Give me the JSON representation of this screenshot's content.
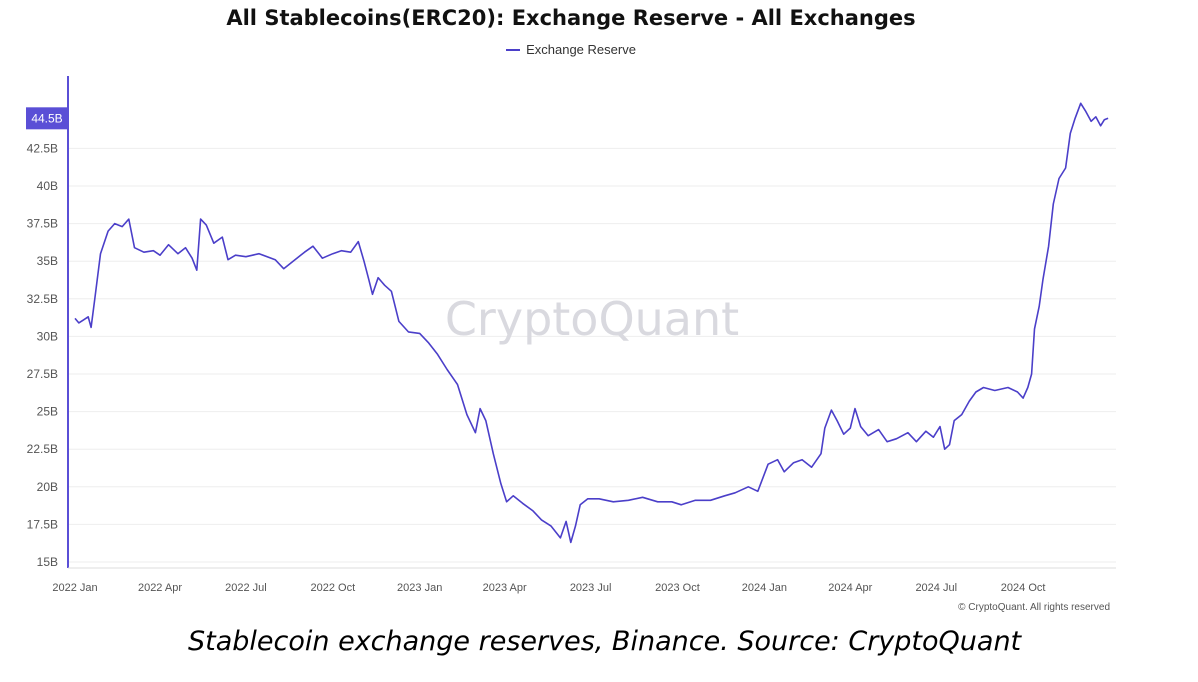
{
  "colors": {
    "series": "#4b3fc9",
    "grid": "#eeeeee",
    "axis": "#5a4fd6",
    "watermark": "#d9d9df",
    "tick": "#555555"
  },
  "watermark": "CryptoQuant",
  "copyright": "© CryptoQuant. All rights reserved",
  "caption": "Stablecoin exchange reserves, Binance. Source: CryptoQuant",
  "chart_data": {
    "type": "line",
    "title": "All Stablecoins(ERC20): Exchange Reserve - All Exchanges",
    "legend": [
      "Exchange Reserve"
    ],
    "xlabel": "",
    "ylabel": "",
    "ylim": [
      15,
      46
    ],
    "grid": true,
    "yticks": [
      {
        "v": 15,
        "label": "15B"
      },
      {
        "v": 17.5,
        "label": "17.5B"
      },
      {
        "v": 20,
        "label": "20B"
      },
      {
        "v": 22.5,
        "label": "22.5B"
      },
      {
        "v": 25,
        "label": "25B"
      },
      {
        "v": 27.5,
        "label": "27.5B"
      },
      {
        "v": 30,
        "label": "30B"
      },
      {
        "v": 32.5,
        "label": "32.5B"
      },
      {
        "v": 35,
        "label": "35B"
      },
      {
        "v": 37.5,
        "label": "37.5B"
      },
      {
        "v": 40,
        "label": "40B"
      },
      {
        "v": 42.5,
        "label": "42.5B"
      }
    ],
    "xticks": [
      {
        "date": "2022-01-01",
        "label": "2022 Jan"
      },
      {
        "date": "2022-04-01",
        "label": "2022 Apr"
      },
      {
        "date": "2022-07-01",
        "label": "2022 Jul"
      },
      {
        "date": "2022-10-01",
        "label": "2022 Oct"
      },
      {
        "date": "2023-01-01",
        "label": "2023 Jan"
      },
      {
        "date": "2023-04-01",
        "label": "2023 Apr"
      },
      {
        "date": "2023-07-01",
        "label": "2023 Jul"
      },
      {
        "date": "2023-10-01",
        "label": "2023 Oct"
      },
      {
        "date": "2024-01-01",
        "label": "2024 Jan"
      },
      {
        "date": "2024-04-01",
        "label": "2024 Apr"
      },
      {
        "date": "2024-07-01",
        "label": "2024 Jul"
      },
      {
        "date": "2024-10-01",
        "label": "2024 Oct"
      }
    ],
    "current_value": {
      "v": 44.5,
      "label": "44.5B"
    },
    "series": [
      {
        "name": "Exchange Reserve",
        "points": [
          [
            "2022-01-01",
            31.2
          ],
          [
            "2022-01-05",
            30.9
          ],
          [
            "2022-01-10",
            31.1
          ],
          [
            "2022-01-15",
            31.3
          ],
          [
            "2022-01-18",
            30.6
          ],
          [
            "2022-01-22",
            32.5
          ],
          [
            "2022-01-28",
            35.5
          ],
          [
            "2022-02-05",
            37.0
          ],
          [
            "2022-02-12",
            37.5
          ],
          [
            "2022-02-20",
            37.3
          ],
          [
            "2022-02-27",
            37.8
          ],
          [
            "2022-03-05",
            35.9
          ],
          [
            "2022-03-15",
            35.6
          ],
          [
            "2022-03-25",
            35.7
          ],
          [
            "2022-04-01",
            35.4
          ],
          [
            "2022-04-10",
            36.1
          ],
          [
            "2022-04-20",
            35.5
          ],
          [
            "2022-04-28",
            35.9
          ],
          [
            "2022-05-05",
            35.2
          ],
          [
            "2022-05-10",
            34.4
          ],
          [
            "2022-05-14",
            37.8
          ],
          [
            "2022-05-20",
            37.4
          ],
          [
            "2022-05-28",
            36.2
          ],
          [
            "2022-06-06",
            36.6
          ],
          [
            "2022-06-12",
            35.1
          ],
          [
            "2022-06-20",
            35.4
          ],
          [
            "2022-07-01",
            35.3
          ],
          [
            "2022-07-15",
            35.5
          ],
          [
            "2022-08-01",
            35.1
          ],
          [
            "2022-08-10",
            34.5
          ],
          [
            "2022-08-20",
            35.0
          ],
          [
            "2022-09-01",
            35.6
          ],
          [
            "2022-09-10",
            36.0
          ],
          [
            "2022-09-20",
            35.2
          ],
          [
            "2022-10-01",
            35.5
          ],
          [
            "2022-10-10",
            35.7
          ],
          [
            "2022-10-20",
            35.6
          ],
          [
            "2022-10-28",
            36.3
          ],
          [
            "2022-11-03",
            35.0
          ],
          [
            "2022-11-08",
            33.8
          ],
          [
            "2022-11-12",
            32.8
          ],
          [
            "2022-11-18",
            33.9
          ],
          [
            "2022-11-25",
            33.4
          ],
          [
            "2022-12-02",
            33.0
          ],
          [
            "2022-12-10",
            31.0
          ],
          [
            "2022-12-20",
            30.3
          ],
          [
            "2023-01-01",
            30.2
          ],
          [
            "2023-01-10",
            29.6
          ],
          [
            "2023-01-20",
            28.8
          ],
          [
            "2023-01-30",
            27.8
          ],
          [
            "2023-02-10",
            26.8
          ],
          [
            "2023-02-20",
            24.8
          ],
          [
            "2023-03-01",
            23.6
          ],
          [
            "2023-03-06",
            25.2
          ],
          [
            "2023-03-12",
            24.4
          ],
          [
            "2023-03-20",
            22.2
          ],
          [
            "2023-03-28",
            20.2
          ],
          [
            "2023-04-03",
            19.0
          ],
          [
            "2023-04-10",
            19.4
          ],
          [
            "2023-04-20",
            18.9
          ],
          [
            "2023-05-01",
            18.4
          ],
          [
            "2023-05-10",
            17.8
          ],
          [
            "2023-05-20",
            17.4
          ],
          [
            "2023-05-30",
            16.6
          ],
          [
            "2023-06-05",
            17.7
          ],
          [
            "2023-06-10",
            16.3
          ],
          [
            "2023-06-15",
            17.4
          ],
          [
            "2023-06-20",
            18.8
          ],
          [
            "2023-06-28",
            19.2
          ],
          [
            "2023-07-10",
            19.2
          ],
          [
            "2023-07-25",
            19.0
          ],
          [
            "2023-08-10",
            19.1
          ],
          [
            "2023-08-25",
            19.3
          ],
          [
            "2023-09-10",
            19.0
          ],
          [
            "2023-09-25",
            19.0
          ],
          [
            "2023-10-05",
            18.8
          ],
          [
            "2023-10-20",
            19.1
          ],
          [
            "2023-11-05",
            19.1
          ],
          [
            "2023-11-20",
            19.4
          ],
          [
            "2023-12-01",
            19.6
          ],
          [
            "2023-12-15",
            20.0
          ],
          [
            "2023-12-25",
            19.7
          ],
          [
            "2024-01-05",
            21.5
          ],
          [
            "2024-01-15",
            21.8
          ],
          [
            "2024-01-22",
            21.0
          ],
          [
            "2024-02-01",
            21.6
          ],
          [
            "2024-02-10",
            21.8
          ],
          [
            "2024-02-20",
            21.3
          ],
          [
            "2024-03-01",
            22.2
          ],
          [
            "2024-03-05",
            23.9
          ],
          [
            "2024-03-12",
            25.1
          ],
          [
            "2024-03-18",
            24.4
          ],
          [
            "2024-03-25",
            23.5
          ],
          [
            "2024-04-01",
            23.9
          ],
          [
            "2024-04-06",
            25.2
          ],
          [
            "2024-04-12",
            24.0
          ],
          [
            "2024-04-20",
            23.4
          ],
          [
            "2024-05-01",
            23.8
          ],
          [
            "2024-05-10",
            23.0
          ],
          [
            "2024-05-20",
            23.2
          ],
          [
            "2024-06-01",
            23.6
          ],
          [
            "2024-06-10",
            23.0
          ],
          [
            "2024-06-20",
            23.7
          ],
          [
            "2024-06-28",
            23.3
          ],
          [
            "2024-07-05",
            24.0
          ],
          [
            "2024-07-10",
            22.5
          ],
          [
            "2024-07-15",
            22.8
          ],
          [
            "2024-07-20",
            24.4
          ],
          [
            "2024-07-28",
            24.8
          ],
          [
            "2024-08-05",
            25.7
          ],
          [
            "2024-08-12",
            26.3
          ],
          [
            "2024-08-20",
            26.6
          ],
          [
            "2024-09-01",
            26.4
          ],
          [
            "2024-09-15",
            26.6
          ],
          [
            "2024-09-25",
            26.3
          ],
          [
            "2024-10-01",
            25.9
          ],
          [
            "2024-10-06",
            26.6
          ],
          [
            "2024-10-10",
            27.5
          ],
          [
            "2024-10-13",
            30.5
          ],
          [
            "2024-10-18",
            32.0
          ],
          [
            "2024-10-22",
            33.8
          ],
          [
            "2024-10-28",
            36.0
          ],
          [
            "2024-11-02",
            38.8
          ],
          [
            "2024-11-08",
            40.5
          ],
          [
            "2024-11-15",
            41.2
          ],
          [
            "2024-11-20",
            43.5
          ],
          [
            "2024-11-25",
            44.5
          ],
          [
            "2024-12-01",
            45.5
          ],
          [
            "2024-12-06",
            45.0
          ],
          [
            "2024-12-12",
            44.3
          ],
          [
            "2024-12-17",
            44.6
          ],
          [
            "2024-12-22",
            44.0
          ],
          [
            "2024-12-26",
            44.4
          ],
          [
            "2024-12-30",
            44.5
          ]
        ]
      }
    ]
  }
}
